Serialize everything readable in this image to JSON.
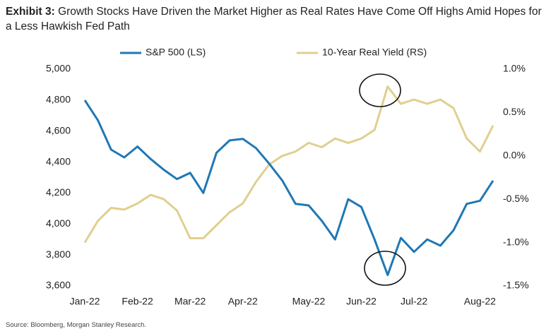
{
  "chart_data": {
    "type": "line",
    "title_label": "Exhibit 3:",
    "title": "Growth Stocks Have Driven the Market Higher as Real Rates Have Come Off Highs Amid Hopes for a Less Hawkish Fed Path",
    "source": "Source: Bloomberg, Morgan Stanley Research.",
    "categories": [
      "Jan-22",
      null,
      null,
      null,
      "Feb-22",
      null,
      null,
      null,
      "Mar-22",
      null,
      null,
      null,
      "Apr-22",
      null,
      null,
      null,
      null,
      "May-22",
      null,
      null,
      null,
      "Jun-22",
      null,
      null,
      null,
      "Jul-22",
      null,
      null,
      null,
      null,
      "Aug-22",
      null
    ],
    "series": [
      {
        "name": "S&P 500 (LS)",
        "color": "#1f78b4",
        "values": [
          4800,
          4670,
          4480,
          4430,
          4500,
          4420,
          4350,
          4290,
          4330,
          4200,
          4460,
          4540,
          4550,
          4490,
          4390,
          4280,
          4130,
          4120,
          4020,
          3900,
          4160,
          4110,
          3900,
          3670,
          3910,
          3820,
          3900,
          3860,
          3960,
          4130,
          4150,
          4280
        ]
      },
      {
        "name": "10-Year Real Yield (RS)",
        "color": "#e0cf8f",
        "axis": "y2",
        "values": [
          -1.0,
          -0.75,
          -0.6,
          -0.62,
          -0.55,
          -0.45,
          -0.5,
          -0.63,
          -0.95,
          -0.95,
          -0.8,
          -0.65,
          -0.55,
          -0.3,
          -0.1,
          0.0,
          0.05,
          0.15,
          0.1,
          0.2,
          0.15,
          0.2,
          0.3,
          0.8,
          0.6,
          0.65,
          0.6,
          0.65,
          0.55,
          0.2,
          0.05,
          0.35
        ]
      }
    ],
    "ylim": [
      3600,
      5000
    ],
    "yticks": [
      {
        "value": 3600,
        "label": "3,600"
      },
      {
        "value": 3800,
        "label": "3,800"
      },
      {
        "value": 4000,
        "label": "4,000"
      },
      {
        "value": 4200,
        "label": "4,200"
      },
      {
        "value": 4400,
        "label": "4,400"
      },
      {
        "value": 4600,
        "label": "4,600"
      },
      {
        "value": 4800,
        "label": "4,800"
      },
      {
        "value": 5000,
        "label": "5,000"
      }
    ],
    "y2lim": [
      -1.5,
      1.0
    ],
    "y2ticks": [
      {
        "value": -1.5,
        "label": "-1.5%"
      },
      {
        "value": -1.0,
        "label": "-1.0%"
      },
      {
        "value": -0.5,
        "label": "-0.5%"
      },
      {
        "value": 0.0,
        "label": "0.0%"
      },
      {
        "value": 0.5,
        "label": "0.5%"
      },
      {
        "value": 1.0,
        "label": "1.0%"
      }
    ],
    "legend": "top",
    "grid": false
  }
}
